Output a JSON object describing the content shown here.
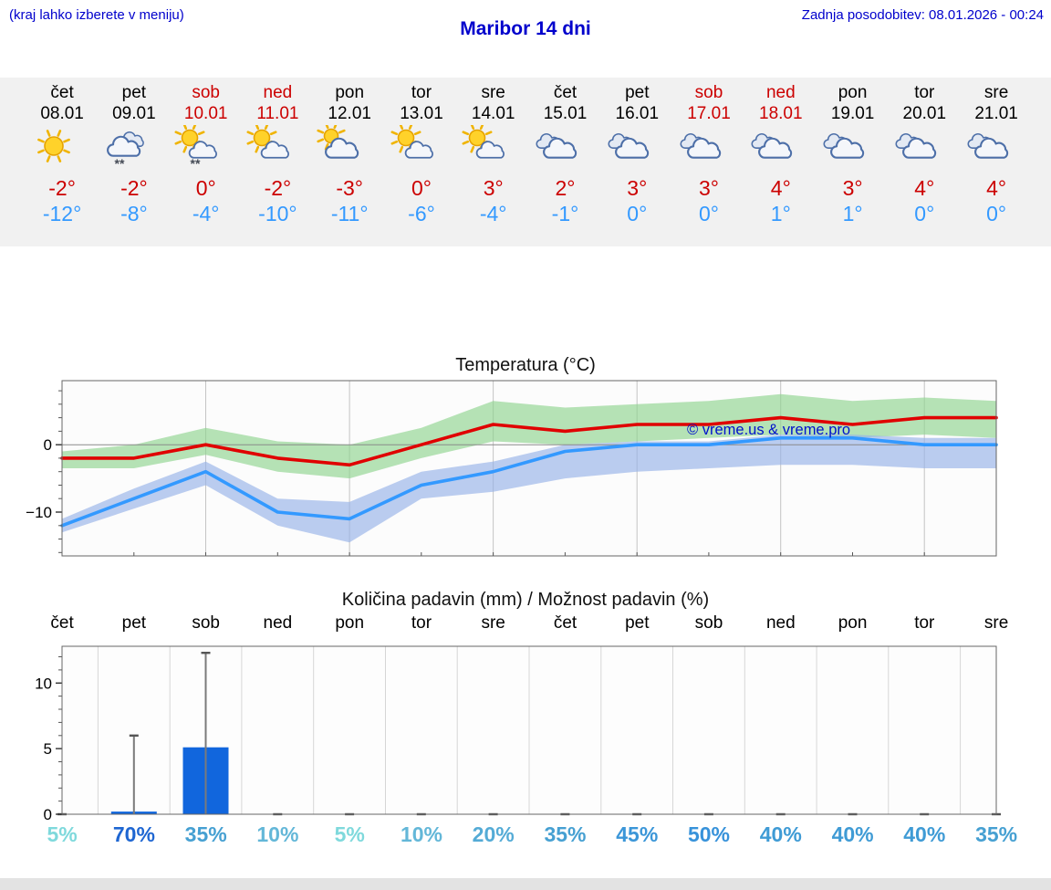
{
  "header": {
    "hint": "(kraj lahko izberete v meniju)",
    "title": "Maribor 14 dni",
    "updated": "Zadnja posodobitev: 08.01.2026 - 00:24"
  },
  "colors": {
    "link_blue": "#0000cc",
    "tmax_red": "#cc0000",
    "tmin_blue": "#3399ff",
    "weekend_red": "#cc0000",
    "strip_bg": "#f1f1f1",
    "bar_blue": "#1166dd",
    "line_red": "#e00000",
    "line_blue": "#3399ff",
    "band_green": "#8fd48f",
    "band_blue": "#96b2e8"
  },
  "days": [
    {
      "name": "čet",
      "date": "08.01",
      "weekend": false,
      "icon": "sunny-icon",
      "tmax": "-2°",
      "tmin": "-12°"
    },
    {
      "name": "pet",
      "date": "09.01",
      "weekend": false,
      "icon": "cloud-snow-icon",
      "tmax": "-2°",
      "tmin": "-8°"
    },
    {
      "name": "sob",
      "date": "10.01",
      "weekend": true,
      "icon": "sun-cloud-snow-icon",
      "tmax": "0°",
      "tmin": "-4°"
    },
    {
      "name": "ned",
      "date": "11.01",
      "weekend": true,
      "icon": "sun-cloud-icon",
      "tmax": "-2°",
      "tmin": "-10°"
    },
    {
      "name": "pon",
      "date": "12.01",
      "weekend": false,
      "icon": "cloud-sun-icon",
      "tmax": "-3°",
      "tmin": "-11°"
    },
    {
      "name": "tor",
      "date": "13.01",
      "weekend": false,
      "icon": "sun-cloud-icon",
      "tmax": "0°",
      "tmin": "-6°"
    },
    {
      "name": "sre",
      "date": "14.01",
      "weekend": false,
      "icon": "sun-cloud-icon",
      "tmax": "3°",
      "tmin": "-4°"
    },
    {
      "name": "čet",
      "date": "15.01",
      "weekend": false,
      "icon": "cloudy-icon",
      "tmax": "2°",
      "tmin": "-1°"
    },
    {
      "name": "pet",
      "date": "16.01",
      "weekend": false,
      "icon": "cloudy-icon",
      "tmax": "3°",
      "tmin": "0°"
    },
    {
      "name": "sob",
      "date": "17.01",
      "weekend": true,
      "icon": "cloudy-icon",
      "tmax": "3°",
      "tmin": "0°"
    },
    {
      "name": "ned",
      "date": "18.01",
      "weekend": true,
      "icon": "cloudy-icon",
      "tmax": "4°",
      "tmin": "1°"
    },
    {
      "name": "pon",
      "date": "19.01",
      "weekend": false,
      "icon": "cloudy-icon",
      "tmax": "3°",
      "tmin": "1°"
    },
    {
      "name": "tor",
      "date": "20.01",
      "weekend": false,
      "icon": "cloudy-icon",
      "tmax": "4°",
      "tmin": "0°"
    },
    {
      "name": "sre",
      "date": "21.01",
      "weekend": false,
      "icon": "cloudy-icon",
      "tmax": "4°",
      "tmin": "0°"
    }
  ],
  "chart_data": [
    {
      "type": "line",
      "title": "Temperatura (°C)",
      "watermark": "© vreme.us & vreme.pro",
      "x_days": [
        "08.01",
        "09.01",
        "10.01",
        "11.01",
        "12.01",
        "13.01",
        "14.01",
        "15.01",
        "16.01",
        "17.01",
        "18.01",
        "19.01",
        "20.01",
        "21.01"
      ],
      "series": [
        {
          "name": "max-temperature",
          "color": "#e00000",
          "values": [
            -2,
            -2,
            0,
            -2,
            -3,
            0,
            3,
            2,
            3,
            3,
            4,
            3,
            4,
            4
          ]
        },
        {
          "name": "min-temperature",
          "color": "#3399ff",
          "values": [
            -12,
            -8,
            -4,
            -10,
            -11,
            -6,
            -4,
            -1,
            0,
            0,
            1,
            1,
            0,
            0
          ]
        }
      ],
      "bands": [
        {
          "name": "max-range",
          "color": "#8fd48f",
          "upper": [
            -1,
            0,
            2.5,
            0.5,
            0,
            2.5,
            6.5,
            5.5,
            6,
            6.5,
            7.5,
            6.5,
            7,
            6.5
          ],
          "lower": [
            -3.5,
            -3.5,
            -1.5,
            -4,
            -5,
            -2,
            0.5,
            0,
            0.5,
            1,
            1.5,
            1,
            1.5,
            1
          ]
        },
        {
          "name": "min-range",
          "color": "#96b2e8",
          "upper": [
            -11,
            -6.5,
            -2.5,
            -8,
            -8.5,
            -4,
            -2.5,
            0,
            0.5,
            0.5,
            1.5,
            1.5,
            1,
            1
          ],
          "lower": [
            -13,
            -9.5,
            -6,
            -12,
            -14.5,
            -8,
            -7,
            -5,
            -4,
            -3.5,
            -3,
            -3,
            -3.5,
            -3.5
          ]
        }
      ],
      "ylim": [
        -16.5,
        9.5
      ],
      "yticks": [
        {
          "value": 0,
          "label": "0"
        },
        {
          "value": -10,
          "label": "−10"
        }
      ],
      "grid": "vertical-every-2-days",
      "legend": "none"
    },
    {
      "type": "bar",
      "title": "Količina padavin (mm) / Možnost padavin (%)",
      "categories": [
        "čet",
        "pet",
        "sob",
        "ned",
        "pon",
        "tor",
        "sre",
        "čet",
        "pet",
        "sob",
        "ned",
        "pon",
        "tor",
        "sre"
      ],
      "values_mm": [
        0,
        0.2,
        5.1,
        0,
        0,
        0,
        0,
        0,
        0,
        0,
        0,
        0,
        0,
        0
      ],
      "whisker_max_mm": [
        0,
        6,
        12.3,
        0,
        0,
        0,
        0,
        0,
        0,
        0,
        0,
        0,
        0,
        0
      ],
      "probabilities": [
        {
          "label": "5%",
          "color": "#7fd9dc"
        },
        {
          "label": "70%",
          "color": "#1e66d2"
        },
        {
          "label": "35%",
          "color": "#46a0d2"
        },
        {
          "label": "10%",
          "color": "#63b7d8"
        },
        {
          "label": "5%",
          "color": "#7fd9dc"
        },
        {
          "label": "10%",
          "color": "#63b7d8"
        },
        {
          "label": "20%",
          "color": "#54abd6"
        },
        {
          "label": "35%",
          "color": "#46a0d2"
        },
        {
          "label": "45%",
          "color": "#3b96d8"
        },
        {
          "label": "50%",
          "color": "#3792da"
        },
        {
          "label": "40%",
          "color": "#3f9bd5"
        },
        {
          "label": "40%",
          "color": "#3f9bd5"
        },
        {
          "label": "40%",
          "color": "#3f9bd5"
        },
        {
          "label": "35%",
          "color": "#46a0d2"
        }
      ],
      "ylim": [
        0,
        12.8
      ],
      "yticks": [
        {
          "value": 0,
          "label": "0"
        },
        {
          "value": 5,
          "label": "5"
        },
        {
          "value": 10,
          "label": "10"
        }
      ],
      "grid": "vertical-every-day",
      "legend": "none"
    }
  ]
}
